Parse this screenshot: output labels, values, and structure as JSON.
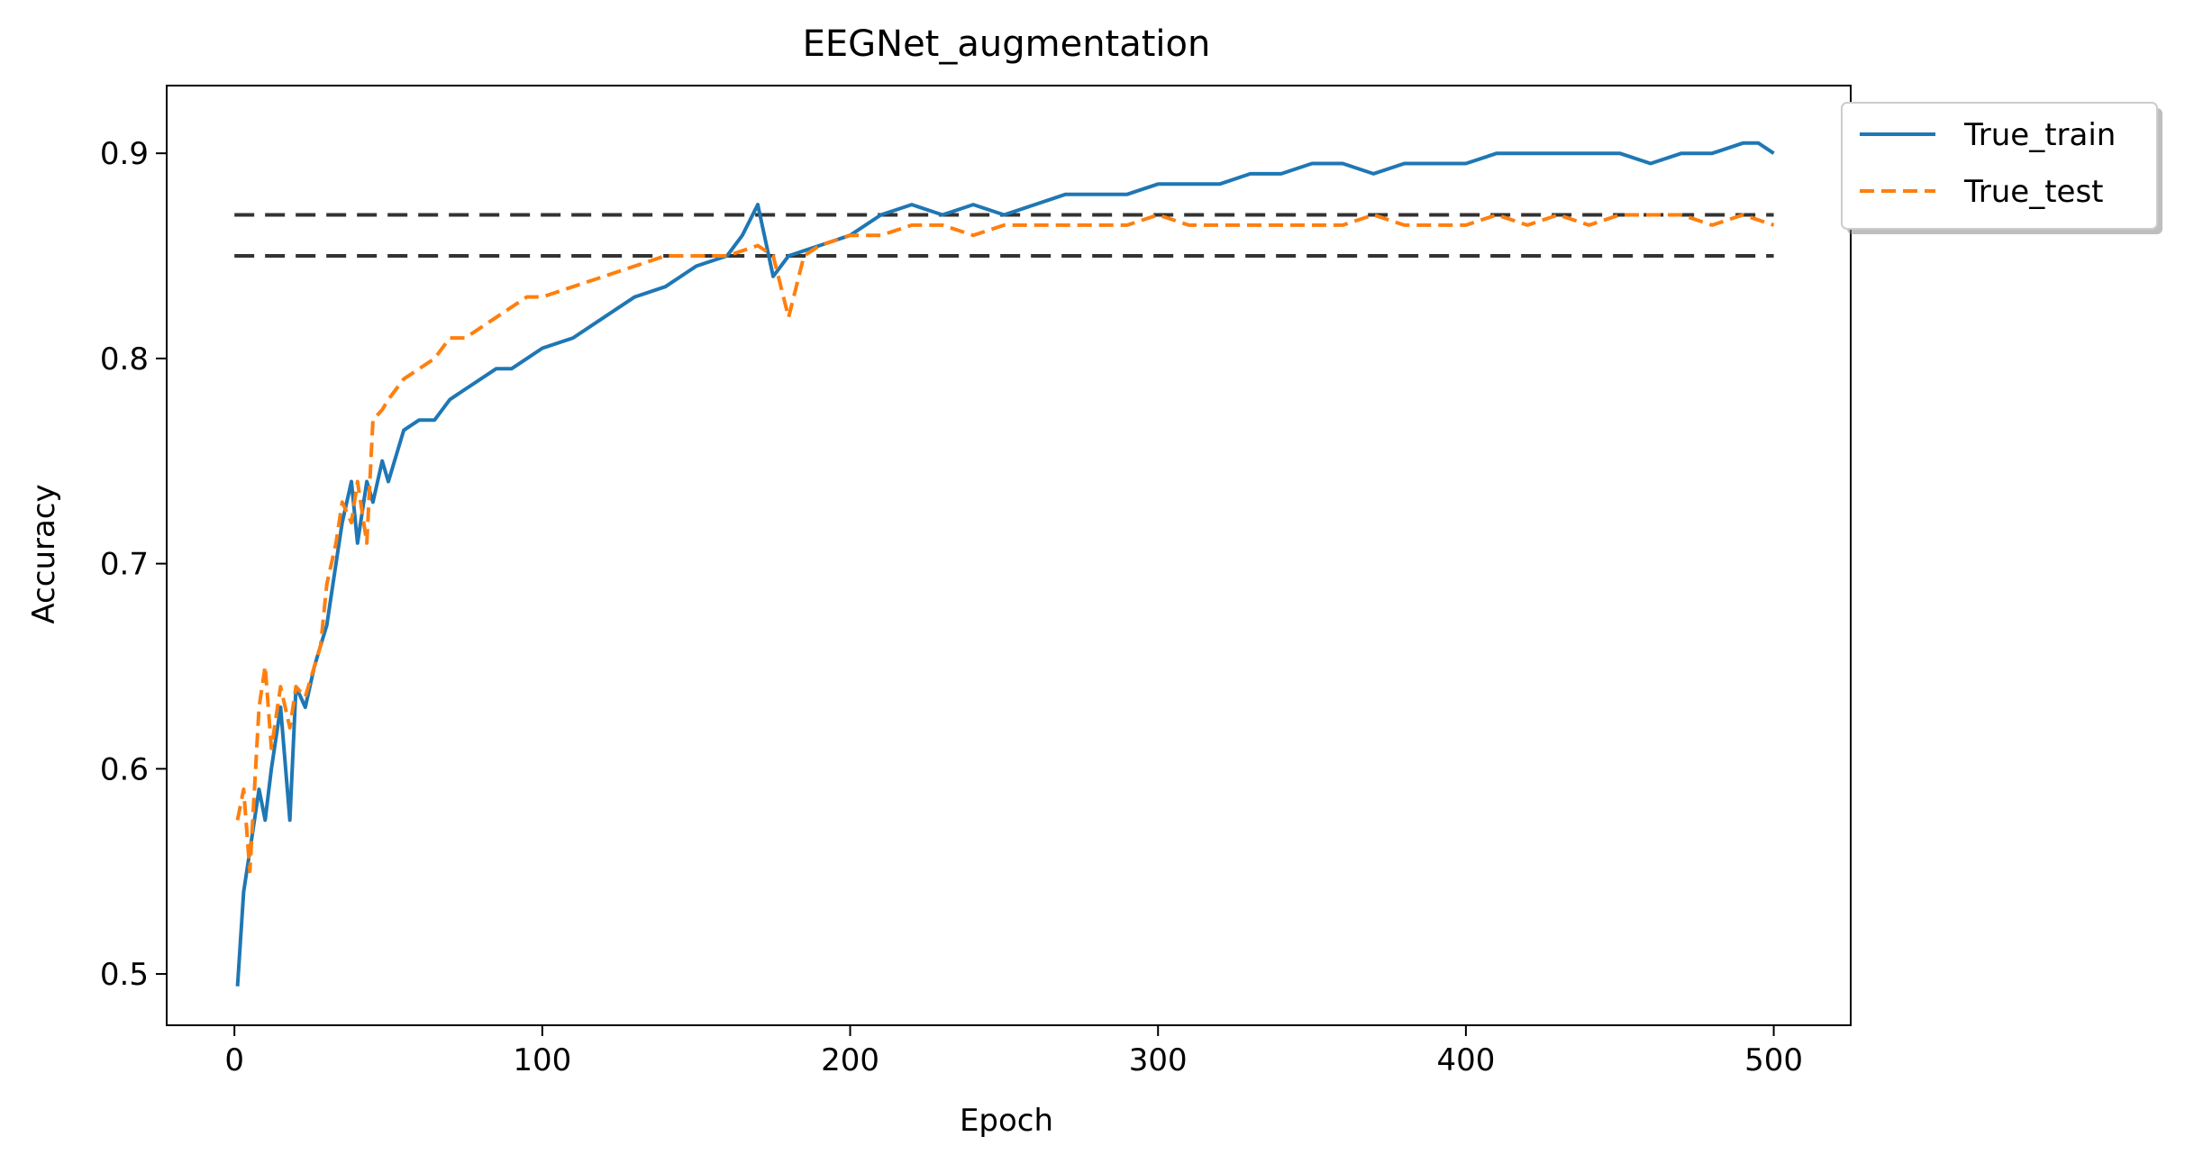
{
  "chart_data": {
    "type": "line",
    "title": "EEGNet_augmentation",
    "xlabel": "Epoch",
    "ylabel": "Accuracy",
    "xlim": [
      -22,
      525
    ],
    "ylim": [
      0.475,
      0.933
    ],
    "xticks": [
      0,
      100,
      200,
      300,
      400,
      500
    ],
    "yticks": [
      0.5,
      0.6,
      0.7,
      0.8,
      0.9
    ],
    "xtick_labels": [
      "0",
      "100",
      "200",
      "300",
      "400",
      "500"
    ],
    "ytick_labels": [
      "0.5",
      "0.6",
      "0.7",
      "0.8",
      "0.9"
    ],
    "grid": false,
    "legend_position": "outside-top-right",
    "series": [
      {
        "name": "True_train",
        "color": "#1f77b4",
        "style": "solid",
        "x": [
          1,
          3,
          5,
          8,
          10,
          12,
          15,
          18,
          20,
          23,
          26,
          28,
          30,
          33,
          35,
          38,
          40,
          43,
          45,
          48,
          50,
          55,
          60,
          65,
          70,
          75,
          80,
          85,
          90,
          95,
          100,
          110,
          120,
          130,
          140,
          150,
          160,
          165,
          170,
          175,
          180,
          190,
          200,
          210,
          220,
          230,
          240,
          250,
          260,
          270,
          280,
          290,
          300,
          310,
          320,
          330,
          340,
          350,
          360,
          370,
          380,
          390,
          400,
          410,
          420,
          430,
          440,
          450,
          460,
          470,
          480,
          490,
          495,
          500
        ],
        "y": [
          0.494,
          0.54,
          0.56,
          0.59,
          0.575,
          0.6,
          0.63,
          0.575,
          0.64,
          0.63,
          0.65,
          0.66,
          0.67,
          0.7,
          0.72,
          0.74,
          0.71,
          0.74,
          0.73,
          0.75,
          0.74,
          0.765,
          0.77,
          0.77,
          0.78,
          0.785,
          0.79,
          0.795,
          0.795,
          0.8,
          0.805,
          0.81,
          0.82,
          0.83,
          0.835,
          0.845,
          0.85,
          0.86,
          0.875,
          0.84,
          0.85,
          0.855,
          0.86,
          0.87,
          0.875,
          0.87,
          0.875,
          0.87,
          0.875,
          0.88,
          0.88,
          0.88,
          0.885,
          0.885,
          0.885,
          0.89,
          0.89,
          0.895,
          0.895,
          0.89,
          0.895,
          0.895,
          0.895,
          0.9,
          0.9,
          0.9,
          0.9,
          0.9,
          0.895,
          0.9,
          0.9,
          0.905,
          0.905,
          0.9
        ]
      },
      {
        "name": "True_test",
        "color": "#ff7f0e",
        "style": "dashed",
        "x": [
          1,
          3,
          5,
          8,
          10,
          12,
          15,
          18,
          20,
          23,
          26,
          28,
          30,
          33,
          35,
          38,
          40,
          43,
          45,
          48,
          50,
          55,
          60,
          65,
          70,
          75,
          80,
          85,
          90,
          95,
          100,
          110,
          120,
          130,
          140,
          150,
          160,
          170,
          175,
          180,
          185,
          190,
          200,
          210,
          220,
          230,
          240,
          250,
          260,
          270,
          280,
          290,
          300,
          310,
          320,
          330,
          340,
          350,
          360,
          370,
          380,
          390,
          400,
          410,
          420,
          430,
          440,
          450,
          460,
          470,
          480,
          490,
          500
        ],
        "y": [
          0.575,
          0.59,
          0.55,
          0.63,
          0.65,
          0.61,
          0.64,
          0.62,
          0.64,
          0.635,
          0.65,
          0.66,
          0.69,
          0.71,
          0.73,
          0.72,
          0.74,
          0.71,
          0.77,
          0.775,
          0.78,
          0.79,
          0.795,
          0.8,
          0.81,
          0.81,
          0.815,
          0.82,
          0.825,
          0.83,
          0.83,
          0.835,
          0.84,
          0.845,
          0.85,
          0.85,
          0.85,
          0.855,
          0.85,
          0.82,
          0.85,
          0.855,
          0.86,
          0.86,
          0.865,
          0.865,
          0.86,
          0.865,
          0.865,
          0.865,
          0.865,
          0.865,
          0.87,
          0.865,
          0.865,
          0.865,
          0.865,
          0.865,
          0.865,
          0.87,
          0.865,
          0.865,
          0.865,
          0.87,
          0.865,
          0.87,
          0.865,
          0.87,
          0.87,
          0.87,
          0.865,
          0.87,
          0.865
        ]
      }
    ],
    "reference_lines": [
      {
        "y": 0.87,
        "x_start": 0,
        "x_end": 500,
        "color": "#333333",
        "style": "dashed"
      },
      {
        "y": 0.85,
        "x_start": 0,
        "x_end": 500,
        "color": "#333333",
        "style": "dashed"
      }
    ]
  }
}
